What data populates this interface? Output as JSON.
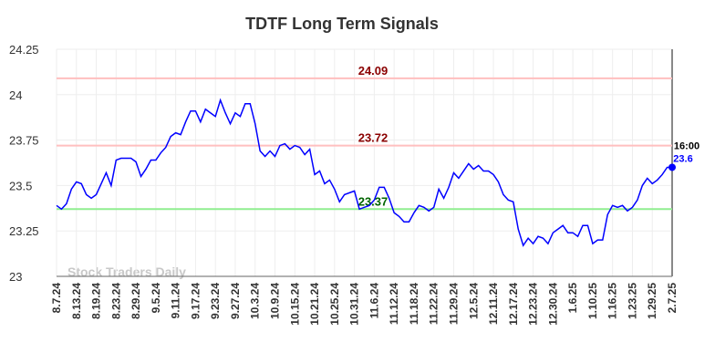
{
  "chart_data": {
    "type": "line",
    "title": "TDTF Long Term Signals",
    "watermark": "Stock Traders Daily",
    "categories": [
      "8.7.24",
      null,
      null,
      null,
      "8.13.24",
      null,
      null,
      null,
      "8.19.24",
      null,
      null,
      null,
      "8.23.24",
      null,
      null,
      null,
      "8.29.24",
      null,
      null,
      null,
      "9.5.24",
      null,
      null,
      null,
      "9.11.24",
      null,
      null,
      null,
      "9.17.24",
      null,
      null,
      null,
      "9.23.24",
      null,
      null,
      null,
      "9.27.24",
      null,
      null,
      null,
      "10.3.24",
      null,
      null,
      null,
      "10.9.24",
      null,
      null,
      null,
      "10.15.24",
      null,
      null,
      null,
      "10.21.24",
      null,
      null,
      null,
      "10.25.24",
      null,
      null,
      null,
      "10.31.24",
      null,
      null,
      null,
      "11.6.24",
      null,
      null,
      null,
      "11.12.24",
      null,
      null,
      null,
      "11.18.24",
      null,
      null,
      null,
      "11.22.24",
      null,
      null,
      null,
      "11.29.24",
      null,
      null,
      null,
      "12.5.24",
      null,
      null,
      null,
      "12.11.24",
      null,
      null,
      null,
      "12.17.24",
      null,
      null,
      null,
      "12.23.24",
      null,
      null,
      null,
      "12.30.24",
      null,
      null,
      null,
      "1.6.25",
      null,
      null,
      null,
      "1.10.25",
      null,
      null,
      null,
      "1.16.25",
      null,
      null,
      null,
      "1.23.25",
      null,
      null,
      null,
      "1.29.25",
      null,
      null,
      null,
      "2.7.25"
    ],
    "series": [
      {
        "color": "#0000ff",
        "values": [
          23.39,
          23.37,
          23.4,
          23.48,
          23.52,
          23.51,
          23.45,
          23.43,
          23.45,
          23.51,
          23.57,
          23.5,
          23.64,
          23.65,
          23.65,
          23.65,
          23.63,
          23.55,
          23.59,
          23.64,
          23.64,
          23.68,
          23.71,
          23.77,
          23.79,
          23.78,
          23.85,
          23.91,
          23.91,
          23.85,
          23.92,
          23.9,
          23.88,
          23.97,
          23.9,
          23.84,
          23.9,
          23.88,
          23.95,
          23.95,
          23.84,
          23.69,
          23.66,
          23.69,
          23.66,
          23.72,
          23.73,
          23.7,
          23.72,
          23.71,
          23.67,
          23.7,
          23.56,
          23.58,
          23.51,
          23.53,
          23.48,
          23.41,
          23.45,
          23.46,
          23.47,
          23.37,
          23.38,
          23.39,
          23.42,
          23.49,
          23.49,
          23.43,
          23.35,
          23.33,
          23.3,
          23.3,
          23.35,
          23.39,
          23.38,
          23.36,
          23.38,
          23.48,
          23.43,
          23.49,
          23.57,
          23.54,
          23.58,
          23.62,
          23.59,
          23.61,
          23.58,
          23.58,
          23.56,
          23.52,
          23.45,
          23.42,
          23.41,
          23.26,
          23.17,
          23.21,
          23.18,
          23.22,
          23.21,
          23.18,
          23.24,
          23.26,
          23.28,
          23.24,
          23.24,
          23.22,
          23.28,
          23.28,
          23.18,
          23.2,
          23.2,
          23.34,
          23.39,
          23.38,
          23.39,
          23.36,
          23.38,
          23.42,
          23.5,
          23.54,
          23.51,
          23.53,
          23.56,
          23.6,
          23.6
        ]
      }
    ],
    "last_point": {
      "time": "16:00",
      "value_label": "23.6"
    },
    "reference_lines": [
      {
        "value": 24.09,
        "color": "#ffbfbf",
        "label_color": "#8b0000"
      },
      {
        "value": 23.72,
        "color": "#ffbfbf",
        "label_color": "#8b0000"
      },
      {
        "value": 23.37,
        "color": "#90ee90",
        "label_color": "#006400"
      }
    ],
    "ylim": [
      23,
      24.25
    ],
    "yticks": [
      23,
      23.25,
      23.5,
      23.75,
      24,
      24.25
    ],
    "grid": true
  }
}
